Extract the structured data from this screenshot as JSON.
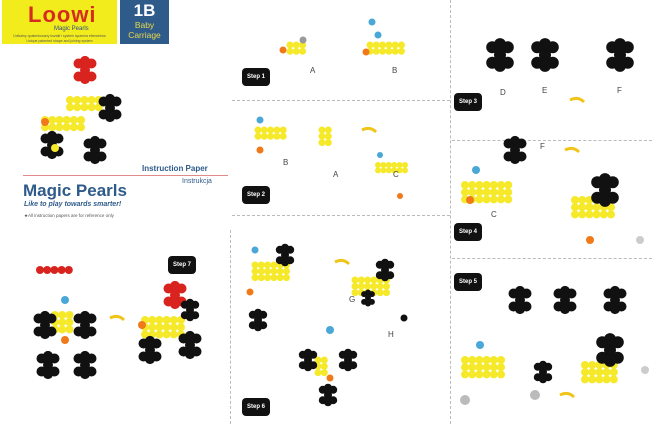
{
  "brand": {
    "name": "Loowi",
    "subtitle": "Magic Pearls",
    "tagline_pl": "Unikalny opatentowany kształt i system łączenia elementów",
    "tagline_en": "Unique patented shape and joining system"
  },
  "badge": {
    "number": "1B",
    "name_line1": "Baby",
    "name_line2": "Carriage"
  },
  "header": {
    "instruction_paper": "Instruction Paper",
    "instrukcja": "Instrukcja",
    "title": "Magic Pearls",
    "slogan": "Like to play towards smarter!",
    "note": "★All instruction papers are for reference only"
  },
  "steps": [
    "Step 1",
    "Step 2",
    "Step 3",
    "Step 4",
    "Step 5",
    "Step 6",
    "Step 7"
  ],
  "labels": {
    "A": "A",
    "B": "B",
    "C": "C",
    "D": "D",
    "E": "E",
    "F": "F",
    "G": "G",
    "H": "H"
  },
  "colors": {
    "yellow": "#f2ec1c",
    "blue": "#2f5b8a",
    "pearl_yellow": "#f5e92a",
    "pearl_black": "#111111",
    "pearl_red": "#d8231e",
    "pearl_cyan": "#4aa8d8",
    "pearl_orange": "#f07a1a",
    "arrow": "#f0c419"
  }
}
